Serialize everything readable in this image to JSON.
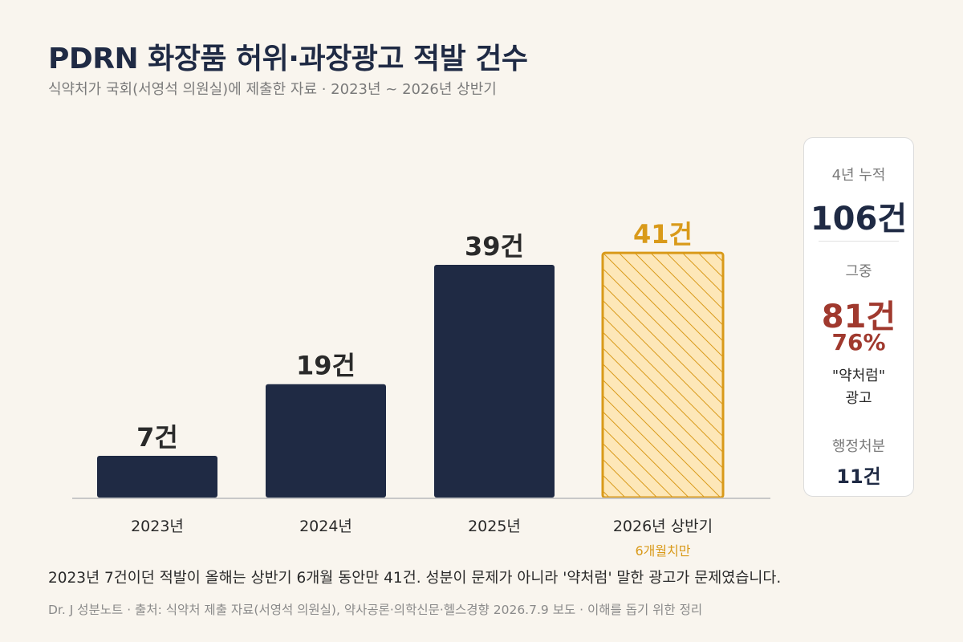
{
  "header": {
    "title": "PDRN 화장품 허위·과장광고 적발 건수",
    "subtitle": "식약처가 국회(서영석 의원실)에 제출한 자료 · 2023년 ~ 2026년 상반기"
  },
  "chart_data": {
    "type": "bar",
    "categories": [
      "2023년",
      "2024년",
      "2025년",
      "2026년 상반기"
    ],
    "values": [
      7,
      19,
      39,
      41
    ],
    "value_labels": [
      "7건",
      "19건",
      "39건",
      "41건"
    ],
    "highlight_index": 3,
    "highlight_note": "6개월치만",
    "ylim": [
      0,
      45
    ],
    "grid": false,
    "colors": {
      "bar": "#1f2a44",
      "highlight_fill": "#fde7b8",
      "highlight_stroke": "#d99a1a",
      "highlight_text": "#d99a1a"
    }
  },
  "summary": {
    "total_label": "4년 누적",
    "total_value": "106건",
    "sub_label": "그중",
    "sub_value": "81건",
    "sub_percent": "76%",
    "sub_desc_line1": "\"약처럼\"",
    "sub_desc_line2": "광고",
    "admin_label": "행정처분",
    "admin_value": "11건",
    "accent_color": "#a0392e"
  },
  "caption": "2023년 7건이던 적발이 올해는 상반기 6개월 동안만 41건. 성분이 문제가 아니라 '약처럼' 말한 광고가 문제였습니다.",
  "footer": "Dr. J 성분노트  ·  출처: 식약처 제출 자료(서영석 의원실), 약사공론·의학신문·헬스경향 2026.7.9 보도  ·  이해를 돕기 위한 정리"
}
